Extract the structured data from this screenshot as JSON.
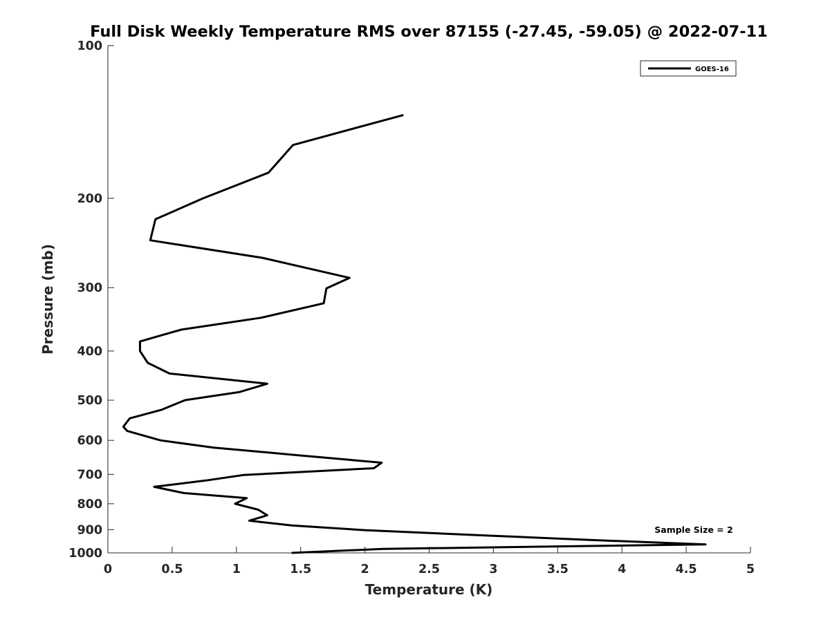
{
  "chart_data": {
    "type": "line",
    "title": "Full Disk Weekly Temperature RMS over 87155 (-27.45, -59.05) @ 2022-07-11",
    "xlabel": "Temperature (K)",
    "ylabel": "Pressure (mb)",
    "xlim": [
      0,
      5
    ],
    "ylim": [
      100,
      1000
    ],
    "y_scale": "log",
    "y_reversed": true,
    "grid": false,
    "x_ticks": [
      0,
      0.5,
      1,
      1.5,
      2,
      2.5,
      3,
      3.5,
      4,
      4.5,
      5
    ],
    "x_tick_labels": [
      "0",
      "0.5",
      "1",
      "1.5",
      "2",
      "2.5",
      "3",
      "3.5",
      "4",
      "4.5",
      "5"
    ],
    "y_ticks": [
      100,
      200,
      300,
      400,
      500,
      600,
      700,
      800,
      900,
      1000
    ],
    "y_tick_labels": [
      "100",
      "200",
      "300",
      "400",
      "500",
      "600",
      "700",
      "800",
      "900",
      "1000"
    ],
    "legend_position": "top-right",
    "series": [
      {
        "name": "GOES-16",
        "color": "#000000",
        "points": [
          [
            2.3,
            137
          ],
          [
            1.44,
            157
          ],
          [
            1.25,
            178
          ],
          [
            0.74,
            200
          ],
          [
            0.37,
            220
          ],
          [
            0.33,
            242
          ],
          [
            1.2,
            262
          ],
          [
            1.88,
            287
          ],
          [
            1.7,
            301
          ],
          [
            1.68,
            322
          ],
          [
            1.19,
            344
          ],
          [
            0.57,
            363
          ],
          [
            0.25,
            383
          ],
          [
            0.25,
            400
          ],
          [
            0.31,
            422
          ],
          [
            0.48,
            443
          ],
          [
            1.24,
            464
          ],
          [
            1.02,
            482
          ],
          [
            0.6,
            500
          ],
          [
            0.42,
            522
          ],
          [
            0.17,
            543
          ],
          [
            0.12,
            564
          ],
          [
            0.15,
            575
          ],
          [
            0.41,
            600
          ],
          [
            0.82,
            620
          ],
          [
            1.48,
            642
          ],
          [
            2.13,
            664
          ],
          [
            2.07,
            681
          ],
          [
            1.06,
            702
          ],
          [
            0.76,
            720
          ],
          [
            0.36,
            741
          ],
          [
            0.59,
            762
          ],
          [
            1.08,
            780
          ],
          [
            0.99,
            800
          ],
          [
            1.17,
            822
          ],
          [
            1.24,
            843
          ],
          [
            1.1,
            864
          ],
          [
            1.43,
            883
          ],
          [
            2.0,
            902
          ],
          [
            2.9,
            923
          ],
          [
            3.75,
            943
          ],
          [
            4.65,
            962
          ],
          [
            2.14,
            982
          ],
          [
            1.43,
            1000
          ]
        ]
      }
    ],
    "annotations": [
      {
        "text": "Sample Size = 2"
      }
    ]
  }
}
